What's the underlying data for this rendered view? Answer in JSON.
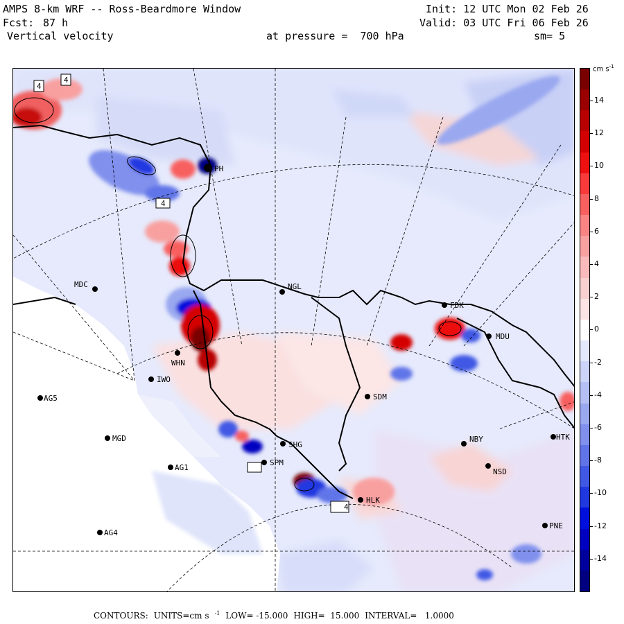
{
  "header": {
    "title": "AMPS 8-km WRF -- Ross-Beardmore Window",
    "init": "Init: 12 UTC Mon 02 Feb 26",
    "fcst_label": "Fcst:",
    "fcst_value": "87 h",
    "valid": "Valid: 03 UTC Fri 06 Feb 26",
    "field": "Vertical velocity",
    "pressure": "at pressure =  700 hPa",
    "smooth": "sm= 5"
  },
  "colorbar": {
    "units": "cm s",
    "units_sup": "-1",
    "ticks": [
      "14",
      "12",
      "10",
      "8",
      "6",
      "4",
      "2",
      "0",
      "-2",
      "-4",
      "-6",
      "-8",
      "-10",
      "-12",
      "-14"
    ],
    "colors": [
      "#7a0000",
      "#9a0000",
      "#b80000",
      "#d40000",
      "#ec1010",
      "#f83a3a",
      "#f86060",
      "#f88484",
      "#f8a0a0",
      "#f8baba",
      "#f8d0d0",
      "#fce4e4",
      "#ffffff",
      "#e4e8fc",
      "#ccd4f8",
      "#b4c0f4",
      "#9aa8f0",
      "#8090ec",
      "#6074e8",
      "#4058e4",
      "#2038e0",
      "#0010dc",
      "#0000c0",
      "#00009c",
      "#000080"
    ]
  },
  "stations": [
    {
      "id": "MDC",
      "label": "MDC"
    },
    {
      "id": "NGL",
      "label": "NGL"
    },
    {
      "id": "FDK",
      "label": "FDK"
    },
    {
      "id": "MDU",
      "label": "MDU"
    },
    {
      "id": "WHN",
      "label": "WHN"
    },
    {
      "id": "IWO",
      "label": "IWO"
    },
    {
      "id": "AG5",
      "label": "AG5"
    },
    {
      "id": "SDM",
      "label": "SDM"
    },
    {
      "id": "MGD",
      "label": "MGD"
    },
    {
      "id": "NBY",
      "label": "NBY"
    },
    {
      "id": "HTK",
      "label": "HTK"
    },
    {
      "id": "AG1",
      "label": "AG1"
    },
    {
      "id": "SHG",
      "label": "SHG"
    },
    {
      "id": "SPM",
      "label": "SPM"
    },
    {
      "id": "NSD",
      "label": "NSD"
    },
    {
      "id": "HLK",
      "label": "HLK"
    },
    {
      "id": "AG4",
      "label": "AG4"
    },
    {
      "id": "PNE",
      "label": "PNE"
    },
    {
      "id": "PH",
      "label": "PH"
    }
  ],
  "box_labels": [
    "4",
    "4",
    "4",
    "4"
  ],
  "footer": {
    "contours": "CONTOURS:",
    "units_label": "UNITS=cm s",
    "units_sup": "-1",
    "low": "LOW= -15.000",
    "high": "HIGH=  15.000",
    "interval": "INTERVAL=   1.0000"
  }
}
